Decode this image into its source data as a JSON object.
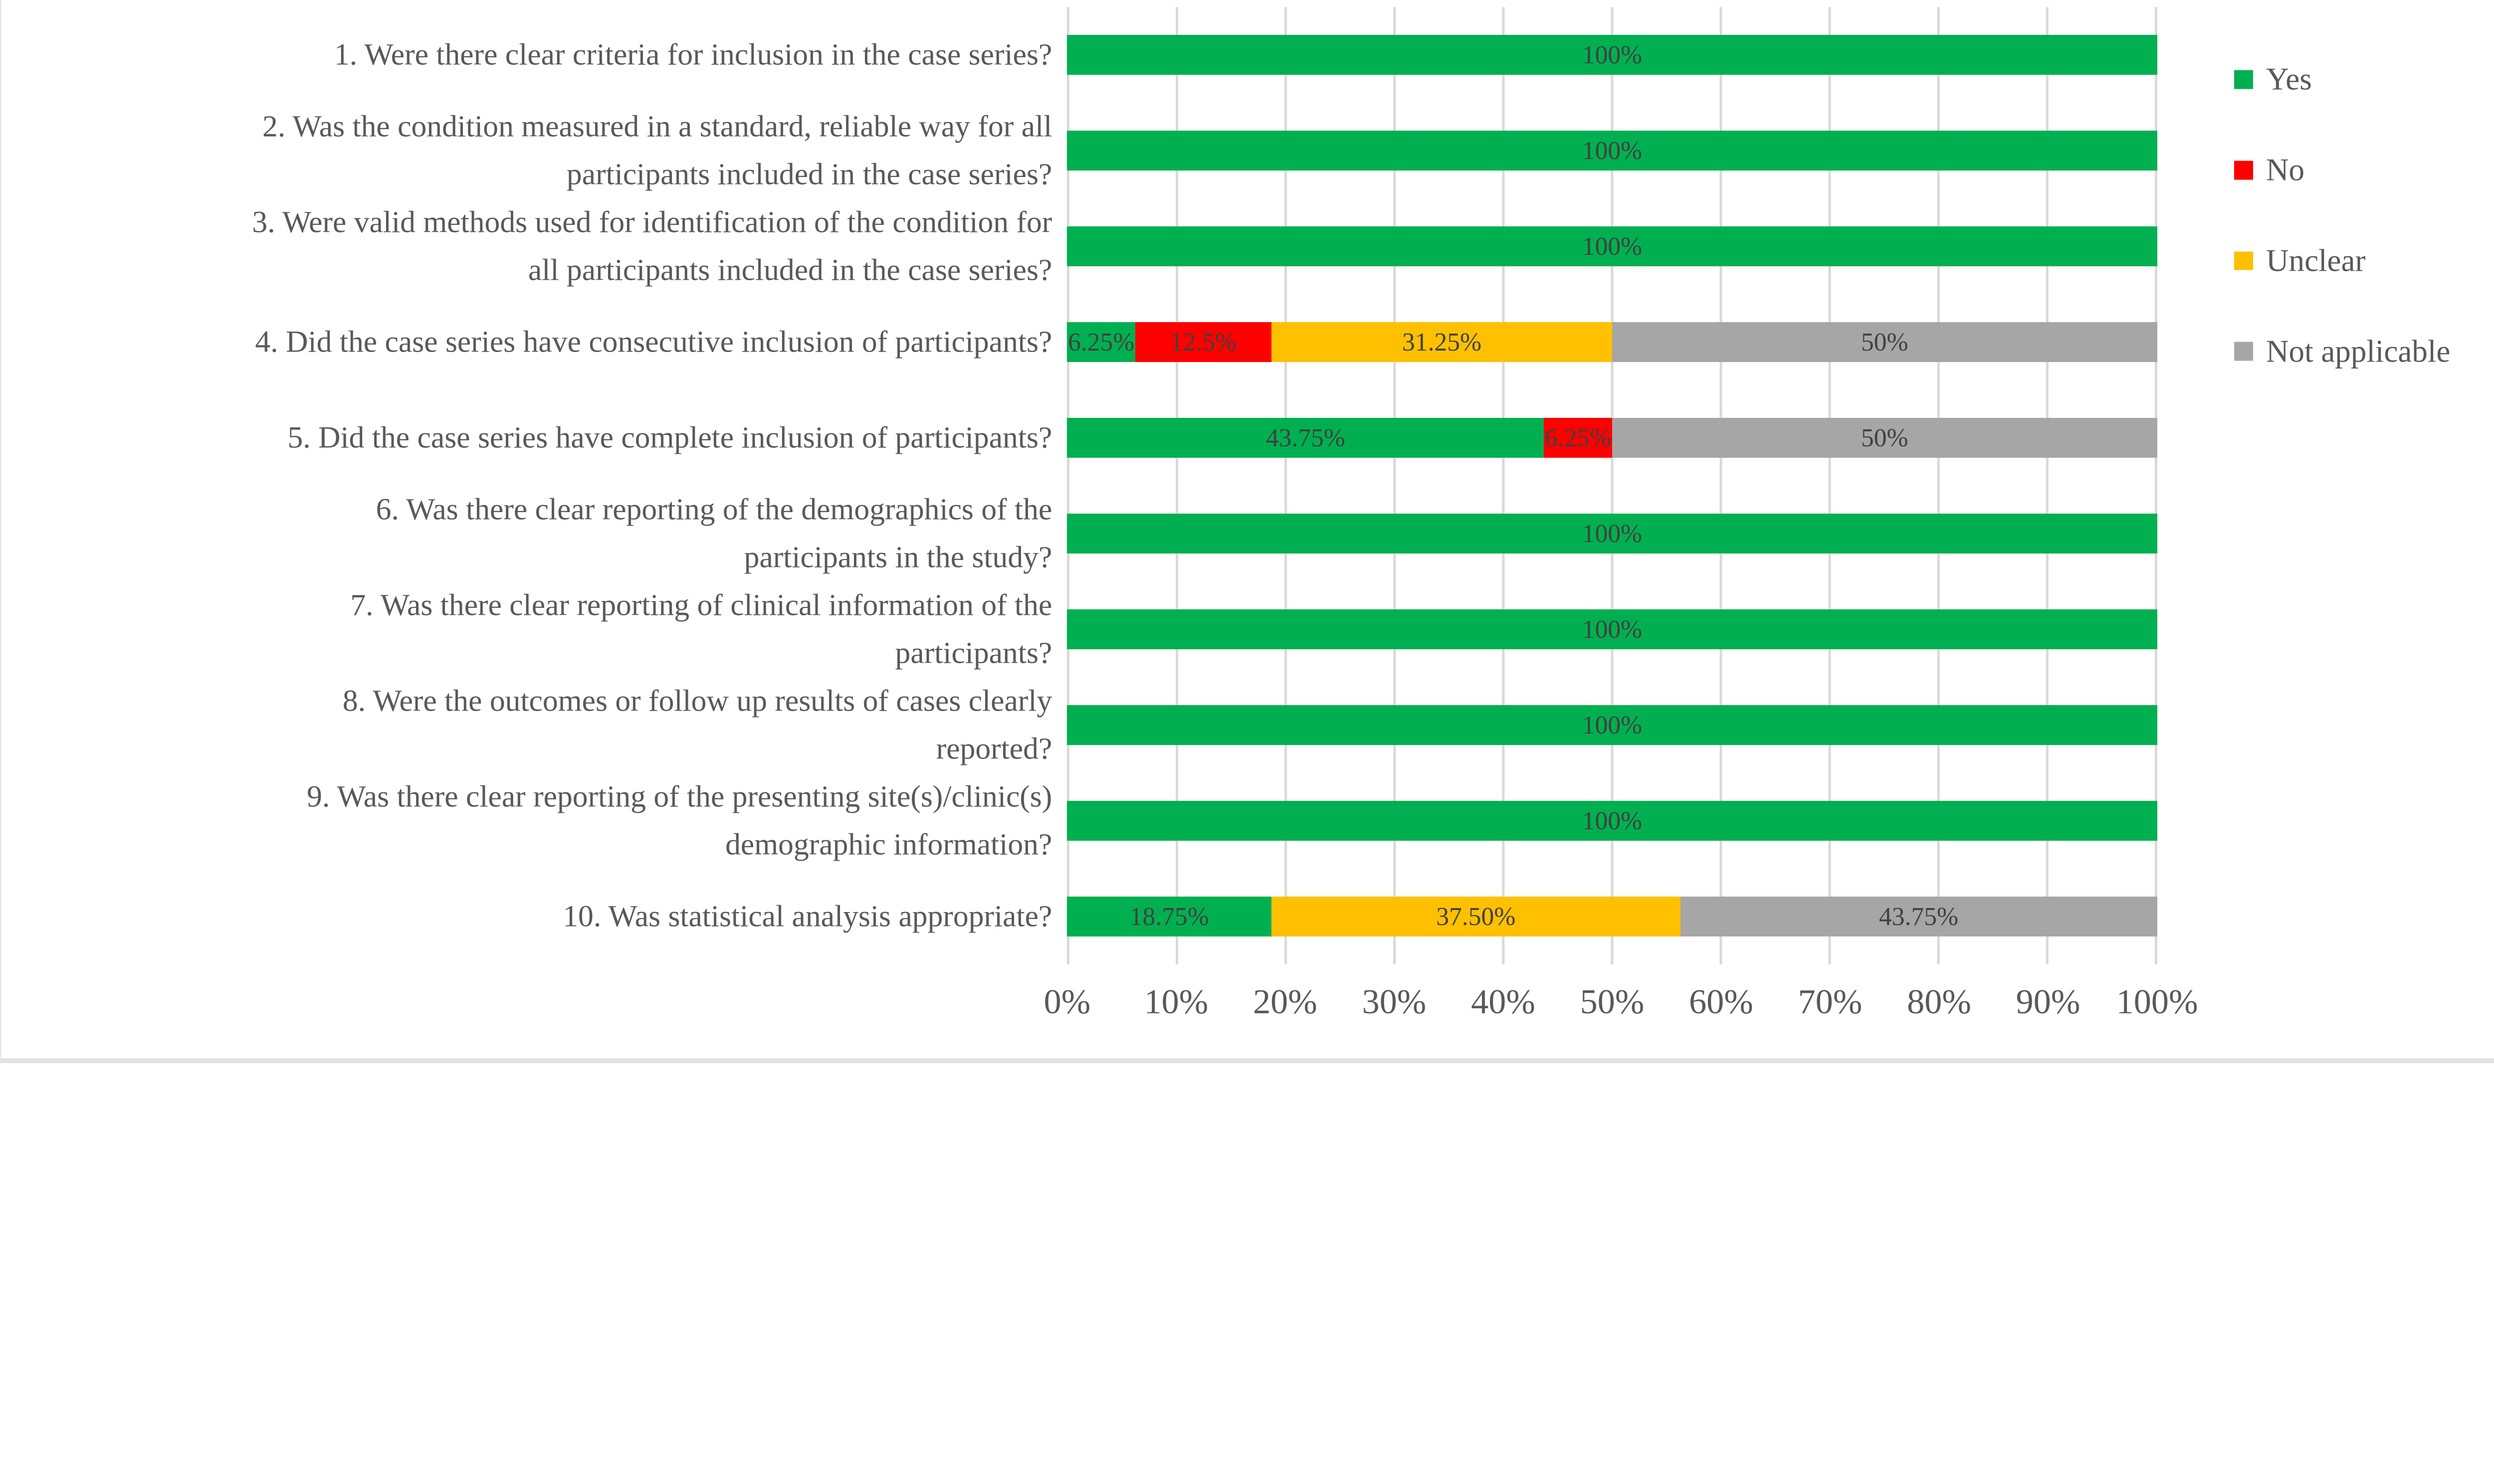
{
  "chart_data": {
    "type": "bar",
    "orientation": "horizontal",
    "stacked": true,
    "title": "",
    "xlabel": "",
    "ylabel": "",
    "xlim": [
      0,
      100
    ],
    "grid": "vertical",
    "legend_position": "right",
    "categories": [
      "1. Were there clear criteria for inclusion in the case series?",
      "2. Was the condition measured in a standard, reliable way for all\nparticipants included in the case series?",
      "3. Were valid methods used for identification of the condition for\nall participants included in the case series?",
      "4. Did the case series have consecutive inclusion of participants?",
      "5. Did the case series have complete inclusion of participants?",
      "6. Was there clear reporting of the demographics of the\nparticipants in the study?",
      "7. Was there clear reporting of clinical information of the\nparticipants?",
      "8. Were the outcomes or follow up results of cases clearly\nreported?",
      "9. Was there clear reporting of the presenting site(s)/clinic(s)\ndemographic information?",
      "10. Was statistical analysis appropriate?"
    ],
    "series": [
      {
        "name": "Yes",
        "color": "#00B050",
        "values": [
          100,
          100,
          100,
          6.25,
          43.75,
          100,
          100,
          100,
          100,
          18.75
        ],
        "labels": [
          "100%",
          "100%",
          "100%",
          "6.25%",
          "43.75%",
          "100%",
          "100%",
          "100%",
          "100%",
          "18.75%"
        ]
      },
      {
        "name": "No",
        "color": "#FF0000",
        "values": [
          0,
          0,
          0,
          12.5,
          6.25,
          0,
          0,
          0,
          0,
          0
        ],
        "labels": [
          "",
          "",
          "",
          "12.5%",
          "6.25%",
          "",
          "",
          "",
          "",
          ""
        ]
      },
      {
        "name": "Unclear",
        "color": "#FFC000",
        "values": [
          0,
          0,
          0,
          31.25,
          0,
          0,
          0,
          0,
          0,
          37.5
        ],
        "labels": [
          "",
          "",
          "",
          "31.25%",
          "",
          "",
          "",
          "",
          "",
          "37.50%"
        ]
      },
      {
        "name": "Not applicable",
        "color": "#A6A6A6",
        "values": [
          0,
          0,
          0,
          50,
          50,
          0,
          0,
          0,
          0,
          43.75
        ],
        "labels": [
          "",
          "",
          "",
          "50%",
          "50%",
          "",
          "",
          "",
          "",
          "43.75%"
        ]
      }
    ],
    "x_ticks": [
      "0%",
      "10%",
      "20%",
      "30%",
      "40%",
      "50%",
      "60%",
      "70%",
      "80%",
      "90%",
      "100%"
    ]
  },
  "colors": {
    "background": "#FFFFFF",
    "gridline": "#D9D9D9",
    "category_text": "#595959",
    "axis_text": "#595959",
    "data_label_text": "#404040",
    "legend_text": "#595959",
    "yes": "#00B050",
    "no": "#FF0000",
    "unclear": "#FFC000",
    "not_applicable": "#A6A6A6"
  }
}
